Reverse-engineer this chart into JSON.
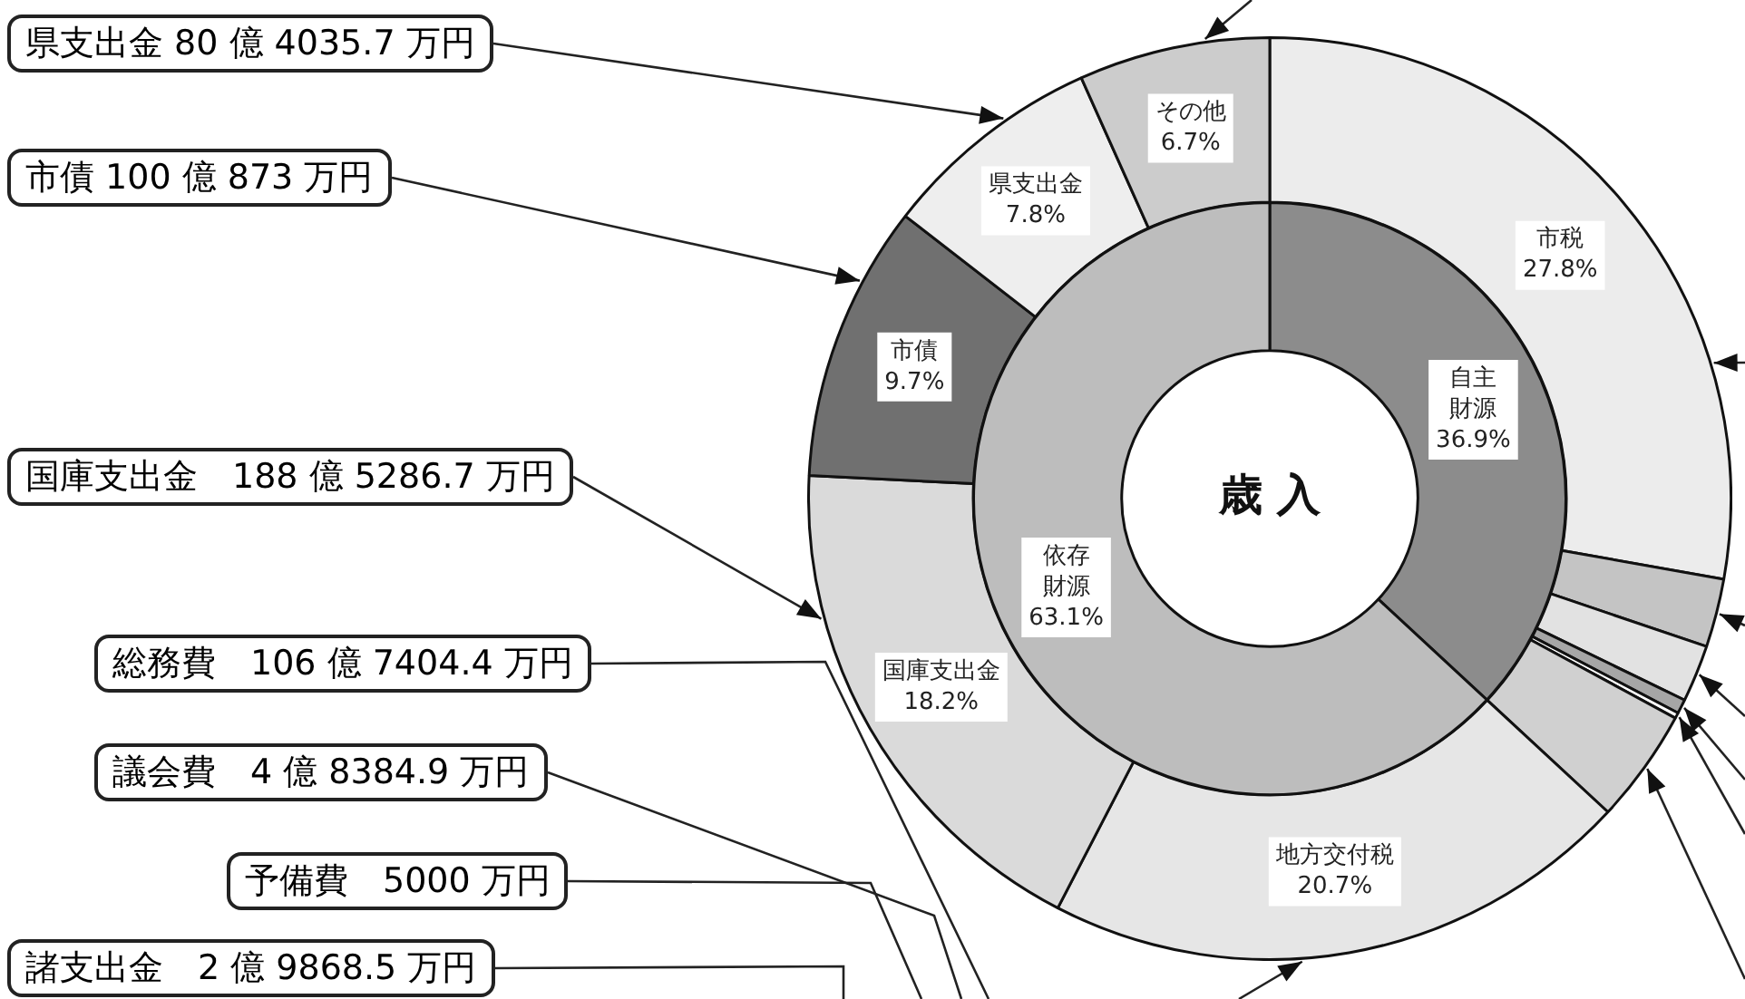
{
  "chart_data": [
    {
      "type": "donut",
      "title": "歳 入",
      "legend": false,
      "categories": [
        "自主財源",
        "依存財源"
      ],
      "values": [
        36.9,
        63.1
      ],
      "colors": [
        "#8c8c8c",
        "#bdbdbd"
      ],
      "value_labels": [
        "36.9%",
        "63.1%"
      ]
    },
    {
      "type": "donut",
      "legend": false,
      "categories": [
        "市税",
        null,
        null,
        null,
        null,
        null,
        "地方交付税",
        "国庫支出金",
        "市債",
        "県支出金",
        "その他"
      ],
      "values": [
        27.8,
        2.4,
        2.0,
        0.5,
        0.2,
        4.0,
        20.7,
        18.2,
        9.7,
        7.8,
        6.7
      ],
      "colors": [
        "#ececec",
        "#c4c4c4",
        "#e2e2e2",
        "#a6a6a6",
        "#ffffff",
        "#d0d0d0",
        "#e6e6e6",
        "#dadada",
        "#707070",
        "#eeeeee",
        "#cccccc"
      ],
      "value_labels": [
        "27.8%",
        null,
        null,
        null,
        null,
        null,
        "20.7%",
        "18.2%",
        "9.7%",
        "7.8%",
        "6.7%"
      ],
      "annotations": [
        "県支出金 80 億 4035.7 万円",
        "市債 100 億 873 万円",
        "国庫支出金　188 億 5286.7 万円",
        "総務費　106 億 7404.4 万円",
        "議会費　4 億 8384.9 万円",
        "予備費　5000 万円",
        "諸支出金　2 億 9868.5 万円"
      ]
    }
  ]
}
